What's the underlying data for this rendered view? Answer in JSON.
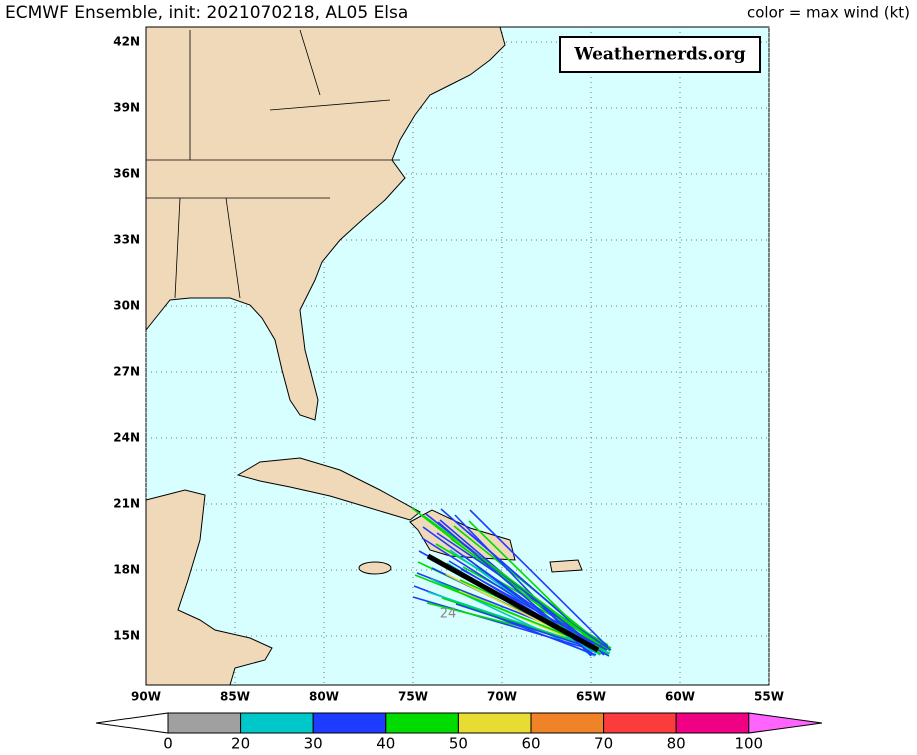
{
  "header": {
    "title": "ECMWF Ensemble, init: 2021070218, AL05 Elsa",
    "legend_note": "color = max wind (kt)"
  },
  "watermark": "Weathernerds.org",
  "map": {
    "lat_labels": [
      "42N",
      "39N",
      "36N",
      "33N",
      "30N",
      "27N",
      "24N",
      "21N",
      "18N",
      "15N"
    ],
    "lon_labels": [
      "90W",
      "85W",
      "80W",
      "75W",
      "70W",
      "65W",
      "60W",
      "55W"
    ]
  },
  "track_labels": [
    "24"
  ],
  "colorbar": {
    "labels": [
      0,
      20,
      30,
      40,
      50,
      60,
      70,
      80,
      100
    ],
    "colors": [
      "#a0a0a0",
      "#00c8c8",
      "#1e3cff",
      "#00dc00",
      "#e6dc32",
      "#f08228",
      "#fa3c3c",
      "#f00082"
    ]
  }
}
